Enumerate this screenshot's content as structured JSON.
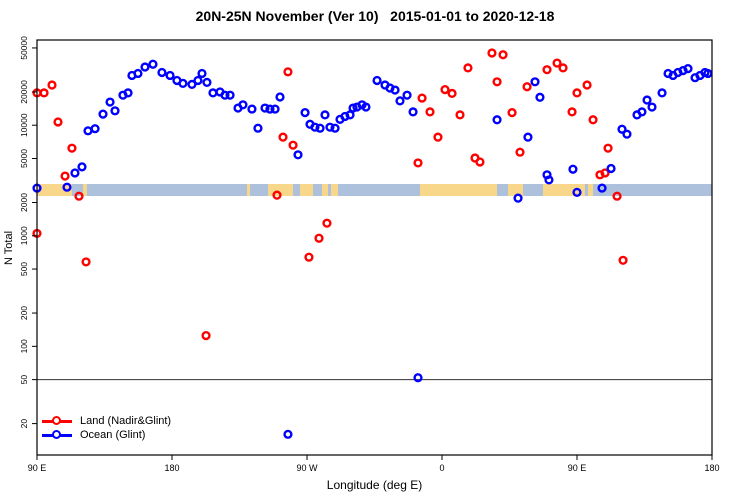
{
  "chart_data": {
    "type": "scatter",
    "title": "20N-25N November (Ver 10)   2015-01-01 to 2020-12-18",
    "xlabel": "Longitude (deg E)",
    "ylabel": "N Total",
    "y_scale": "log10",
    "xlim": [
      90,
      540
    ],
    "ylim": [
      10.4,
      59000
    ],
    "x_ticks": [
      {
        "lon": 90,
        "label": "90 E"
      },
      {
        "lon": 180,
        "label": "180"
      },
      {
        "lon": 270,
        "label": "90 W"
      },
      {
        "lon": 360,
        "label": "0"
      },
      {
        "lon": 450,
        "label": "90 E"
      },
      {
        "lon": 540,
        "label": "180"
      }
    ],
    "y_ticks": [
      20,
      50,
      100,
      200,
      500,
      1000,
      2000,
      5000,
      10000,
      20000,
      50000
    ],
    "reference_line_value": 50,
    "map_band": {
      "value_top": 2940,
      "value_bottom": 2290,
      "ocean_color": "#adc1dc",
      "land_color": "#f8d68a",
      "land_patches_lon": [
        [
          90,
          113.3
        ],
        [
          120.7,
          123.3
        ],
        [
          230,
          232
        ],
        [
          244,
          260.7
        ],
        [
          265.3,
          274
        ],
        [
          280,
          284
        ],
        [
          286,
          290.7
        ],
        [
          345.3,
          396.7
        ],
        [
          404,
          414
        ],
        [
          427.3,
          455.3
        ],
        [
          457.3,
          460.7
        ]
      ]
    },
    "legend": {
      "position": "bottom-left",
      "items": [
        {
          "label": "Land (Nadir&Glint)",
          "color": "#ff0000"
        },
        {
          "label": "Ocean (Glint)",
          "color": "#0000ff"
        }
      ]
    },
    "marker": {
      "shape": "open-circle",
      "radius": 3.4,
      "stroke_width": 2.4
    },
    "series": [
      {
        "name": "Land (Nadir&Glint)",
        "color": "#ff0000",
        "points": [
          [
            90,
            19600
          ],
          [
            94.7,
            19600
          ],
          [
            100,
            23100
          ],
          [
            104,
            10700
          ],
          [
            108.7,
            3470
          ],
          [
            113.3,
            6200
          ],
          [
            118,
            2280
          ],
          [
            122.7,
            580
          ],
          [
            90,
            1050
          ],
          [
            202.7,
            125
          ],
          [
            250,
            2330
          ],
          [
            254,
            7800
          ],
          [
            257.3,
            30400
          ],
          [
            260.7,
            6600
          ],
          [
            271.3,
            640
          ],
          [
            278,
            950
          ],
          [
            283.3,
            1300
          ],
          [
            344,
            4560
          ],
          [
            346.7,
            17600
          ],
          [
            352,
            13200
          ],
          [
            357.3,
            7800
          ],
          [
            362,
            21000
          ],
          [
            366.7,
            19400
          ],
          [
            372,
            12400
          ],
          [
            377.3,
            33000
          ],
          [
            382,
            5050
          ],
          [
            385.3,
            4650
          ],
          [
            393.3,
            45000
          ],
          [
            400.7,
            43400
          ],
          [
            396.7,
            24700
          ],
          [
            406.7,
            13000
          ],
          [
            412,
            5700
          ],
          [
            416.7,
            22300
          ],
          [
            430,
            31800
          ],
          [
            436.7,
            36500
          ],
          [
            440.7,
            33000
          ],
          [
            446.7,
            13200
          ],
          [
            450,
            19600
          ],
          [
            456.7,
            23100
          ],
          [
            460.7,
            11200
          ],
          [
            465.3,
            3560
          ],
          [
            468.7,
            3700
          ],
          [
            470.7,
            6200
          ],
          [
            476.7,
            2280
          ],
          [
            480.7,
            600
          ]
        ]
      },
      {
        "name": "Ocean (Glint)",
        "color": "#0000ff",
        "points": [
          [
            90,
            2700
          ],
          [
            110,
            2750
          ],
          [
            115.3,
            3700
          ],
          [
            120,
            4200
          ],
          [
            124,
            8900
          ],
          [
            128.7,
            9300
          ],
          [
            134,
            12600
          ],
          [
            138.7,
            16200
          ],
          [
            142,
            13500
          ],
          [
            147.3,
            18700
          ],
          [
            150.7,
            19600
          ],
          [
            153.3,
            28200
          ],
          [
            157.3,
            29400
          ],
          [
            162,
            33600
          ],
          [
            167.3,
            35600
          ],
          [
            173.3,
            30000
          ],
          [
            178.7,
            28200
          ],
          [
            183.3,
            25400
          ],
          [
            187.3,
            23900
          ],
          [
            193.3,
            23400
          ],
          [
            197.3,
            25400
          ],
          [
            200,
            29400
          ],
          [
            203.3,
            24400
          ],
          [
            207.3,
            19600
          ],
          [
            212,
            20000
          ],
          [
            215.3,
            18700
          ],
          [
            218.7,
            18700
          ],
          [
            224,
            14300
          ],
          [
            227.3,
            15300
          ],
          [
            233.3,
            14000
          ],
          [
            237.3,
            9400
          ],
          [
            242,
            14300
          ],
          [
            245.3,
            14000
          ],
          [
            248.7,
            14000
          ],
          [
            252,
            18000
          ],
          [
            264,
            5400
          ],
          [
            268.7,
            13000
          ],
          [
            272,
            10200
          ],
          [
            275.3,
            9600
          ],
          [
            278.7,
            9400
          ],
          [
            282,
            12400
          ],
          [
            285.3,
            9600
          ],
          [
            288.7,
            9400
          ],
          [
            292,
            11300
          ],
          [
            295.3,
            12000
          ],
          [
            298.7,
            12400
          ],
          [
            300.7,
            14300
          ],
          [
            303.3,
            14600
          ],
          [
            306.7,
            15300
          ],
          [
            309.3,
            14600
          ],
          [
            316.7,
            25400
          ],
          [
            322,
            23100
          ],
          [
            325.3,
            21700
          ],
          [
            328.7,
            20800
          ],
          [
            332,
            16600
          ],
          [
            336.7,
            18700
          ],
          [
            340.7,
            13200
          ],
          [
            344,
            52
          ],
          [
            257.3,
            16
          ],
          [
            396.7,
            11200
          ],
          [
            410.7,
            2190
          ],
          [
            417.3,
            7800
          ],
          [
            422,
            24700
          ],
          [
            425.3,
            17900
          ],
          [
            430,
            3560
          ],
          [
            431.3,
            3200
          ],
          [
            447.3,
            4000
          ],
          [
            450,
            2470
          ],
          [
            466.7,
            2700
          ],
          [
            472.7,
            4060
          ],
          [
            480,
            9200
          ],
          [
            483.3,
            8300
          ],
          [
            490,
            12400
          ],
          [
            493.3,
            13200
          ],
          [
            496.7,
            16900
          ],
          [
            500,
            14600
          ],
          [
            506.7,
            19600
          ],
          [
            510.7,
            29400
          ],
          [
            514,
            28200
          ],
          [
            517.3,
            30000
          ],
          [
            520.7,
            31200
          ],
          [
            524,
            32500
          ],
          [
            528.7,
            26900
          ],
          [
            532,
            28200
          ],
          [
            535.3,
            30000
          ],
          [
            537.3,
            29400
          ]
        ]
      }
    ]
  }
}
